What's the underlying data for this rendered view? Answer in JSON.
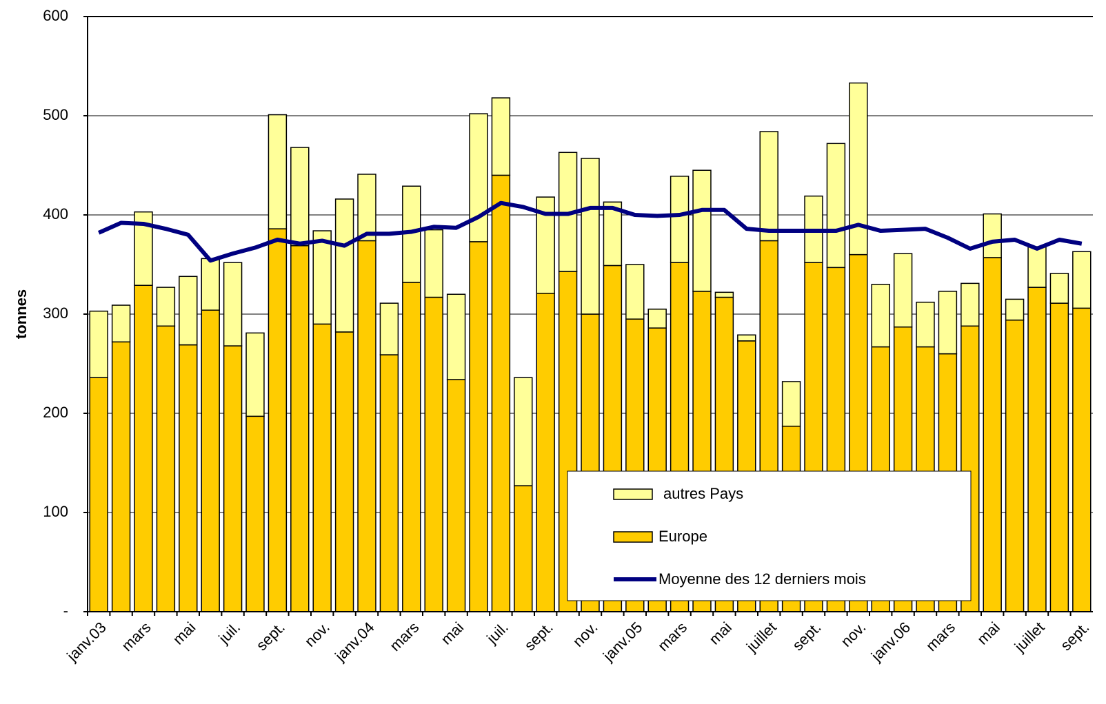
{
  "chart_data": {
    "type": "bar",
    "stacked": true,
    "y_label": "tonnes",
    "categories": [
      "janv.03",
      null,
      "mars",
      null,
      "mai",
      null,
      "juil.",
      null,
      "sept.",
      null,
      "nov.",
      null,
      "janv.04",
      null,
      "mars",
      null,
      "mai",
      null,
      "juil.",
      null,
      "sept.",
      null,
      "nov.",
      null,
      "janv.05",
      null,
      "mars",
      null,
      "mai",
      null,
      "juillet",
      null,
      "sept.",
      null,
      "nov.",
      null,
      "janv.06",
      null,
      "mars",
      null,
      "mai",
      null,
      "juillet",
      null,
      "sept."
    ],
    "series": [
      {
        "name": "Europe",
        "type": "bar",
        "color": "#FFCC00",
        "values": [
          236,
          272,
          329,
          288,
          269,
          304,
          268,
          197,
          386,
          369,
          290,
          282,
          374,
          259,
          332,
          317,
          234,
          373,
          440,
          127,
          321,
          343,
          300,
          349,
          295,
          286,
          352,
          323,
          317,
          273,
          374,
          187,
          352,
          347,
          360,
          267,
          287,
          267,
          260,
          288,
          357,
          294,
          327,
          311,
          306
        ]
      },
      {
        "name": "autres Pays",
        "type": "bar",
        "color": "#FFFF99",
        "values": [
          67,
          37,
          74,
          39,
          69,
          52,
          84,
          84,
          115,
          99,
          94,
          134,
          67,
          52,
          97,
          68,
          86,
          129,
          78,
          109,
          97,
          120,
          157,
          64,
          55,
          19,
          87,
          122,
          5,
          6,
          110,
          45,
          67,
          125,
          173,
          63,
          74,
          45,
          63,
          43,
          44,
          21,
          41,
          30,
          57
        ]
      },
      {
        "name": "Moyenne des 12 derniers mois",
        "type": "line",
        "color": "#000080",
        "values": [
          382,
          392,
          391,
          386,
          380,
          354,
          361,
          367,
          375,
          371,
          374,
          369,
          381,
          381,
          383,
          388,
          387,
          398,
          412,
          408,
          401,
          401,
          407,
          407,
          400,
          399,
          400,
          405,
          405,
          386,
          384,
          384,
          384,
          384,
          390,
          384,
          385,
          386,
          377,
          366,
          373,
          375,
          366,
          375,
          371
        ]
      }
    ],
    "ylim": [
      0,
      600
    ],
    "yticks": [
      {
        "value": 0,
        "label": "-"
      },
      100,
      200,
      300,
      400,
      500,
      600
    ],
    "grid": true,
    "legend": [
      "autres Pays",
      "Europe",
      "Moyenne des 12 derniers mois"
    ]
  }
}
